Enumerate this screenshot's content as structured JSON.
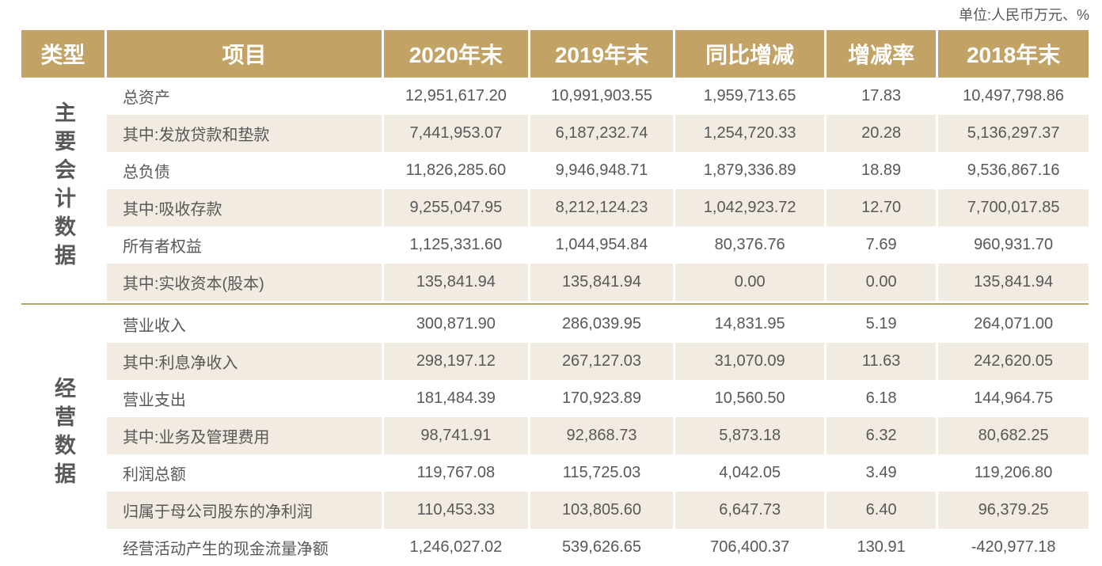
{
  "page": {
    "unit_label": "单位:人民币万元、%"
  },
  "colors": {
    "header_bg": "#c3a265",
    "stripe_bg": "#f2ebe2",
    "text": "#595757",
    "header_text": "#ffffff",
    "divider": "#c3a265"
  },
  "table": {
    "columns": [
      "类型",
      "项目",
      "2020年末",
      "2019年末",
      "同比增减",
      "增减率",
      "2018年末"
    ],
    "sections": [
      {
        "type_label": "主要会计数据",
        "rows": [
          {
            "item": "总资产",
            "y2020": "12,951,617.20",
            "y2019": "10,991,903.55",
            "change": "1,959,713.65",
            "rate": "17.83",
            "y2018": "10,497,798.86"
          },
          {
            "item": "其中:发放贷款和垫款",
            "y2020": "7,441,953.07",
            "y2019": "6,187,232.74",
            "change": "1,254,720.33",
            "rate": "20.28",
            "y2018": "5,136,297.37"
          },
          {
            "item": "总负债",
            "y2020": "11,826,285.60",
            "y2019": "9,946,948.71",
            "change": "1,879,336.89",
            "rate": "18.89",
            "y2018": "9,536,867.16"
          },
          {
            "item": "其中:吸收存款",
            "y2020": "9,255,047.95",
            "y2019": "8,212,124.23",
            "change": "1,042,923.72",
            "rate": "12.70",
            "y2018": "7,700,017.85"
          },
          {
            "item": "所有者权益",
            "y2020": "1,125,331.60",
            "y2019": "1,044,954.84",
            "change": "80,376.76",
            "rate": "7.69",
            "y2018": "960,931.70"
          },
          {
            "item": "其中:实收资本(股本)",
            "y2020": "135,841.94",
            "y2019": "135,841.94",
            "change": "0.00",
            "rate": "0.00",
            "y2018": "135,841.94"
          }
        ]
      },
      {
        "type_label": "经营数据",
        "rows": [
          {
            "item": "营业收入",
            "y2020": "300,871.90",
            "y2019": "286,039.95",
            "change": "14,831.95",
            "rate": "5.19",
            "y2018": "264,071.00"
          },
          {
            "item": "其中:利息净收入",
            "y2020": "298,197.12",
            "y2019": "267,127.03",
            "change": "31,070.09",
            "rate": "11.63",
            "y2018": "242,620.05"
          },
          {
            "item": "营业支出",
            "y2020": "181,484.39",
            "y2019": "170,923.89",
            "change": "10,560.50",
            "rate": "6.18",
            "y2018": "144,964.75"
          },
          {
            "item": "其中:业务及管理费用",
            "y2020": "98,741.91",
            "y2019": "92,868.73",
            "change": "5,873.18",
            "rate": "6.32",
            "y2018": "80,682.25"
          },
          {
            "item": "利润总额",
            "y2020": "119,767.08",
            "y2019": "115,725.03",
            "change": "4,042.05",
            "rate": "3.49",
            "y2018": "119,206.80"
          },
          {
            "item": "归属于母公司股东的净利润",
            "y2020": "110,453.33",
            "y2019": "103,805.60",
            "change": "6,647.73",
            "rate": "6.40",
            "y2018": "96,379.25"
          },
          {
            "item": "经营活动产生的现金流量净额",
            "y2020": "1,246,027.02",
            "y2019": "539,626.65",
            "change": "706,400.37",
            "rate": "130.91",
            "y2018": "-420,977.18"
          }
        ]
      }
    ]
  }
}
